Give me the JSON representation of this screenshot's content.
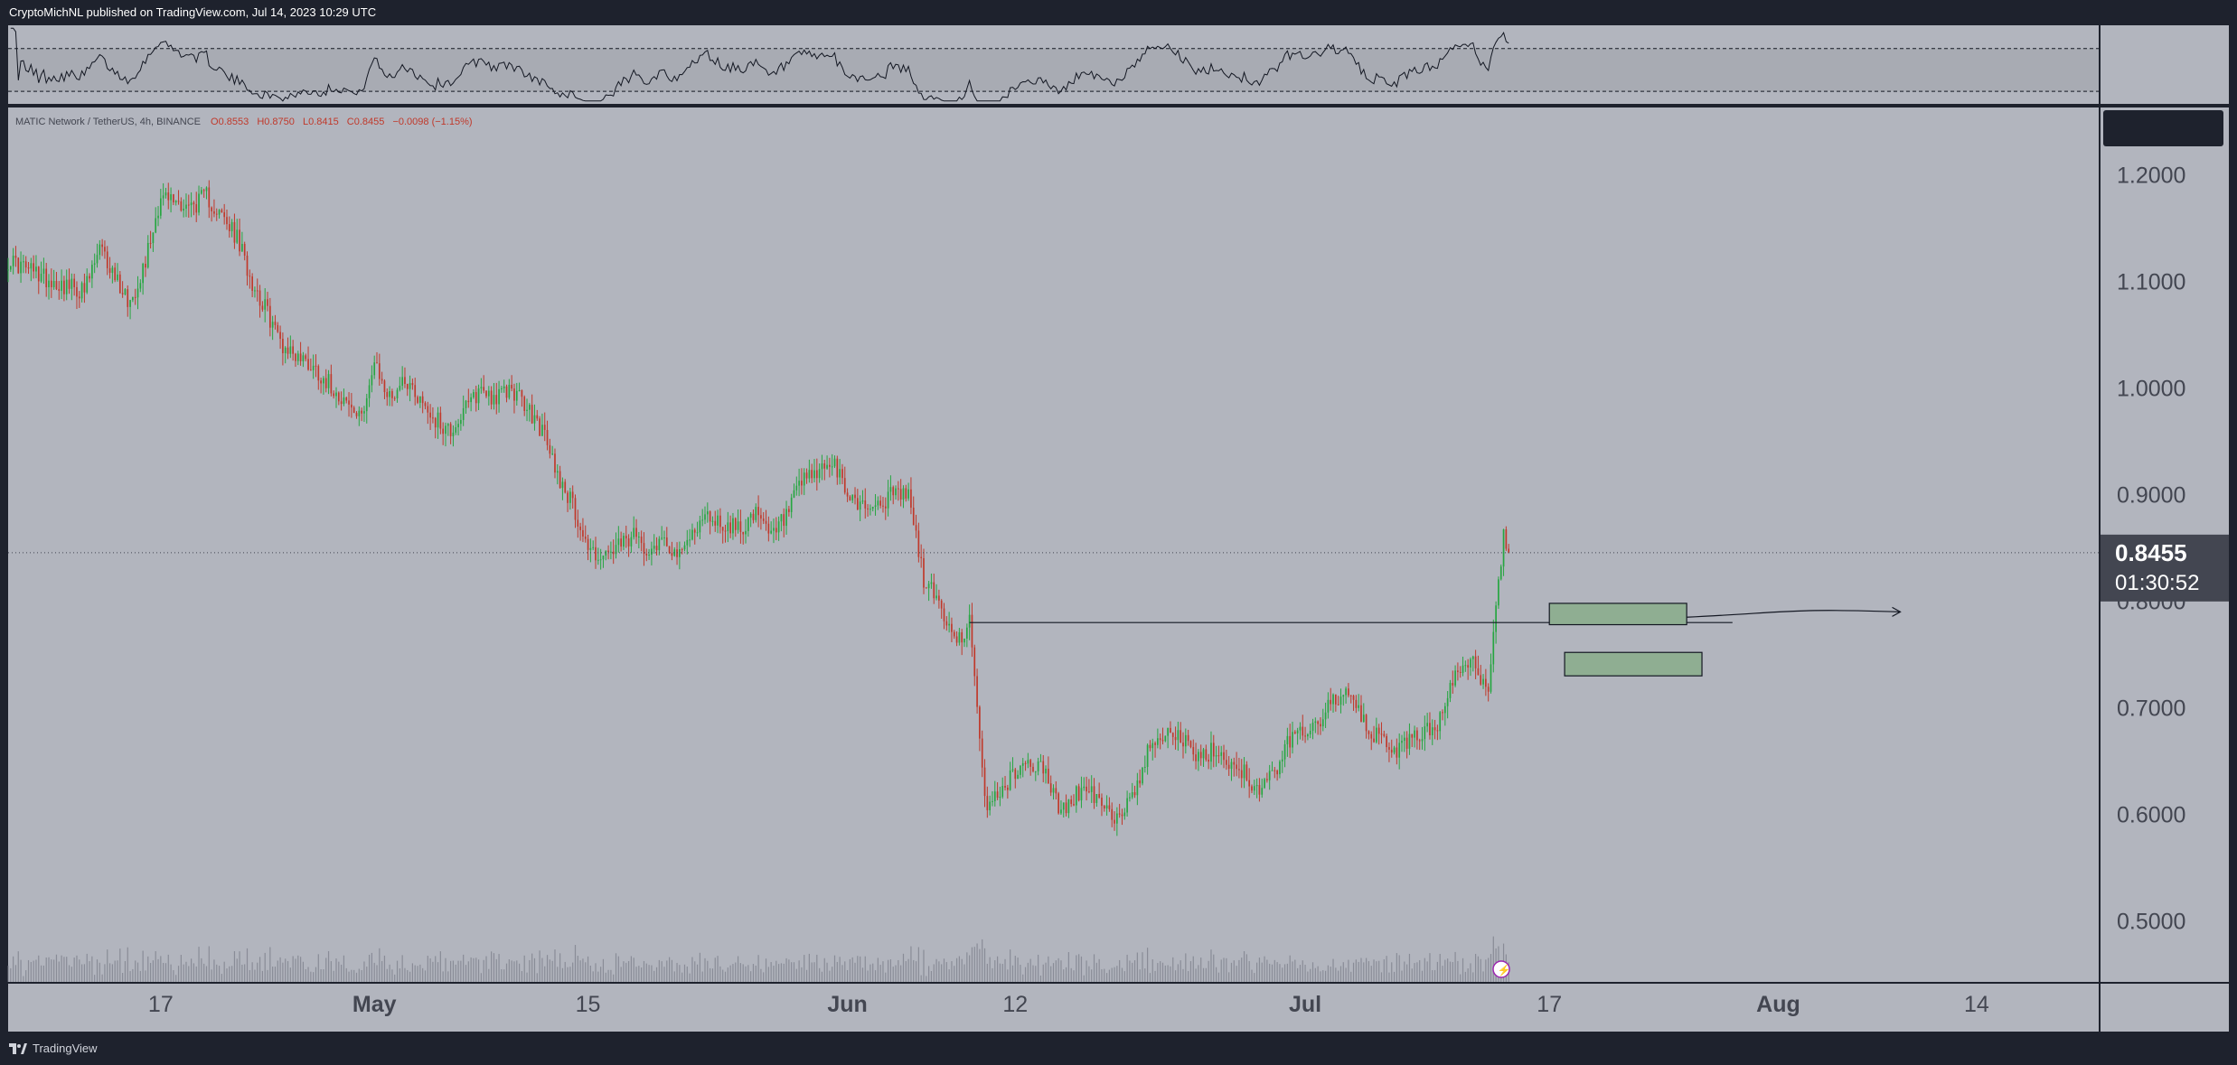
{
  "header": {
    "text": "CryptoMichNL published on TradingView.com, Jul 14, 2023 10:29 UTC"
  },
  "footer": {
    "brand": "TradingView"
  },
  "colors": {
    "panel_bg": "#b2b5be",
    "frame_bg": "#1e222d",
    "up": "#26a641",
    "down": "#c0392b",
    "zone_fill": "#8fae92",
    "price_label_bg": "#434651"
  },
  "chart_data": {
    "type": "candlestick",
    "symbol_line": {
      "symbol": "MATIC Network / TetherUS, 4h, BINANCE",
      "open": "O0.8553",
      "high": "H0.8750",
      "low": "L0.8415",
      "close": "C0.8455",
      "change": "−0.0098 (−1.15%)"
    },
    "y_axis": {
      "ticks": [
        "1.2000",
        "1.1000",
        "1.0000",
        "0.9000",
        "0.8000",
        "0.7000",
        "0.6000",
        "0.5000"
      ],
      "tick_values": [
        1.2,
        1.1,
        1.0,
        0.9,
        0.8,
        0.7,
        0.6,
        0.5
      ],
      "range": [
        0.443,
        1.263
      ]
    },
    "x_axis": {
      "ticks": [
        "17",
        "May",
        "15",
        "Jun",
        "12",
        "Jul",
        "17",
        "Aug",
        "14"
      ],
      "bold": [
        false,
        true,
        false,
        true,
        false,
        true,
        false,
        true,
        false
      ],
      "tick_dates": [
        "2023-04-17",
        "2023-05-01",
        "2023-05-15",
        "2023-06-01",
        "2023-06-12",
        "2023-07-01",
        "2023-07-17",
        "2023-08-01",
        "2023-08-14"
      ],
      "range": [
        "2023-04-07",
        "2023-08-22"
      ]
    },
    "last_price": {
      "value": "0.8455",
      "countdown": "01:30:52",
      "level": 0.8455
    },
    "close_path": [
      [
        "2023-04-07",
        1.12
      ],
      [
        "2023-04-10",
        1.1
      ],
      [
        "2023-04-12",
        1.09
      ],
      [
        "2023-04-13",
        1.13
      ],
      [
        "2023-04-15",
        1.08
      ],
      [
        "2023-04-16",
        1.12
      ],
      [
        "2023-04-17",
        1.18
      ],
      [
        "2023-04-19",
        1.17
      ],
      [
        "2023-04-20",
        1.18
      ],
      [
        "2023-04-21",
        1.16
      ],
      [
        "2023-04-22",
        1.14
      ],
      [
        "2023-04-23",
        1.1
      ],
      [
        "2023-04-24",
        1.07
      ],
      [
        "2023-04-25",
        1.04
      ],
      [
        "2023-04-27",
        1.02
      ],
      [
        "2023-04-29",
        0.99
      ],
      [
        "2023-04-30",
        0.97
      ],
      [
        "2023-05-01",
        1.02
      ],
      [
        "2023-05-02",
        0.99
      ],
      [
        "2023-05-03",
        1.01
      ],
      [
        "2023-05-04",
        0.99
      ],
      [
        "2023-05-05",
        0.97
      ],
      [
        "2023-05-06",
        0.96
      ],
      [
        "2023-05-07",
        0.98
      ],
      [
        "2023-05-08",
        1.0
      ],
      [
        "2023-05-09",
        0.99
      ],
      [
        "2023-05-10",
        1.0
      ],
      [
        "2023-05-11",
        0.98
      ],
      [
        "2023-05-12",
        0.96
      ],
      [
        "2023-05-13",
        0.92
      ],
      [
        "2023-05-14",
        0.89
      ],
      [
        "2023-05-15",
        0.85
      ],
      [
        "2023-05-16",
        0.84
      ],
      [
        "2023-05-17",
        0.85
      ],
      [
        "2023-05-18",
        0.86
      ],
      [
        "2023-05-19",
        0.85
      ],
      [
        "2023-05-20",
        0.86
      ],
      [
        "2023-05-21",
        0.84
      ],
      [
        "2023-05-22",
        0.87
      ],
      [
        "2023-05-23",
        0.88
      ],
      [
        "2023-05-24",
        0.87
      ],
      [
        "2023-05-25",
        0.87
      ],
      [
        "2023-05-26",
        0.88
      ],
      [
        "2023-05-27",
        0.86
      ],
      [
        "2023-05-28",
        0.88
      ],
      [
        "2023-05-29",
        0.91
      ],
      [
        "2023-05-30",
        0.92
      ],
      [
        "2023-05-31",
        0.93
      ],
      [
        "2023-06-01",
        0.9
      ],
      [
        "2023-06-02",
        0.89
      ],
      [
        "2023-06-03",
        0.89
      ],
      [
        "2023-06-04",
        0.9
      ],
      [
        "2023-06-05",
        0.9
      ],
      [
        "2023-06-06",
        0.82
      ],
      [
        "2023-06-07",
        0.8
      ],
      [
        "2023-06-08",
        0.76
      ],
      [
        "2023-06-09",
        0.78
      ],
      [
        "2023-06-10",
        0.61
      ],
      [
        "2023-06-11",
        0.62
      ],
      [
        "2023-06-12",
        0.64
      ],
      [
        "2023-06-13",
        0.65
      ],
      [
        "2023-06-14",
        0.64
      ],
      [
        "2023-06-15",
        0.6
      ],
      [
        "2023-06-16",
        0.62
      ],
      [
        "2023-06-17",
        0.62
      ],
      [
        "2023-06-18",
        0.6
      ],
      [
        "2023-06-19",
        0.6
      ],
      [
        "2023-06-20",
        0.63
      ],
      [
        "2023-06-21",
        0.67
      ],
      [
        "2023-06-22",
        0.68
      ],
      [
        "2023-06-23",
        0.67
      ],
      [
        "2023-06-24",
        0.65
      ],
      [
        "2023-06-25",
        0.66
      ],
      [
        "2023-06-26",
        0.65
      ],
      [
        "2023-06-27",
        0.64
      ],
      [
        "2023-06-28",
        0.62
      ],
      [
        "2023-06-29",
        0.64
      ],
      [
        "2023-06-30",
        0.67
      ],
      [
        "2023-07-01",
        0.68
      ],
      [
        "2023-07-02",
        0.69
      ],
      [
        "2023-07-03",
        0.71
      ],
      [
        "2023-07-04",
        0.71
      ],
      [
        "2023-07-05",
        0.68
      ],
      [
        "2023-07-06",
        0.67
      ],
      [
        "2023-07-07",
        0.66
      ],
      [
        "2023-07-08",
        0.67
      ],
      [
        "2023-07-09",
        0.68
      ],
      [
        "2023-07-10",
        0.69
      ],
      [
        "2023-07-11",
        0.74
      ],
      [
        "2023-07-12",
        0.74
      ],
      [
        "2023-07-13",
        0.72
      ],
      [
        "2023-07-13T12",
        0.8
      ],
      [
        "2023-07-14",
        0.86
      ],
      [
        "2023-07-14T08",
        0.8455
      ]
    ],
    "horizontal_line": {
      "value": 0.78,
      "from": "2023-06-09",
      "to": "2023-07-29"
    },
    "forecast_arrow": {
      "from": [
        "2023-07-26",
        0.785
      ],
      "to": [
        "2023-08-09",
        0.79
      ]
    },
    "zones": [
      {
        "from": "2023-07-17",
        "to": "2023-07-26",
        "low": 0.778,
        "high": 0.798
      },
      {
        "from": "2023-07-18",
        "to": "2023-07-27",
        "low": 0.73,
        "high": 0.752
      }
    ],
    "rsi": {
      "upper_band": 70,
      "lower_band": 30,
      "range": [
        20,
        90
      ]
    },
    "grid": false,
    "legend": "top-left"
  }
}
